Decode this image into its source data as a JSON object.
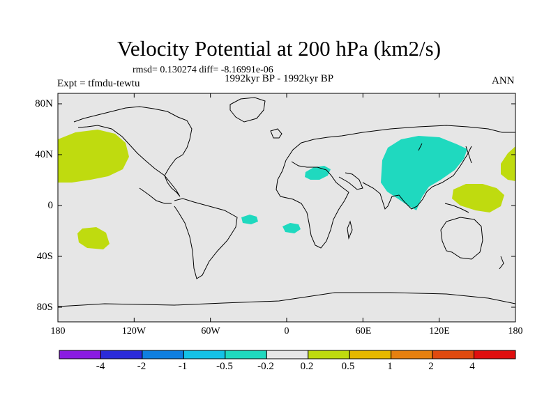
{
  "title": "Velocity Potential at 200 hPa (km2/s)",
  "stats": "rmsd= 0.130274 diff= -8.16991e-06",
  "experiment": "Expt = tfmdu-tewtu",
  "period": "1992kyr BP - 1992kyr BP",
  "season": "ANN",
  "colors": {
    "ocean": "#e6e6e6",
    "negative_region": "#1fd9bf",
    "positive_region": "#bfdb0f",
    "coast": "#000000"
  },
  "map": {
    "lon_ticks": [
      "180",
      "120W",
      "60W",
      "0",
      "60E",
      "120E",
      "180"
    ],
    "lat_ticks": [
      "80N",
      "40N",
      "0",
      "40S",
      "80S"
    ]
  },
  "colorbar": {
    "labels": [
      "-4",
      "-2",
      "-1",
      "-0.5",
      "-0.2",
      "0.2",
      "0.5",
      "1",
      "2",
      "4"
    ],
    "colors": [
      "#8a1be2",
      "#2b2bd9",
      "#0f7fe0",
      "#14c2e6",
      "#1fd9bf",
      "#e6e6e6",
      "#bfdb0f",
      "#e6b800",
      "#e6800f",
      "#e04a0f",
      "#e00f0f"
    ]
  },
  "regions": [
    {
      "name": "north-pacific-positive",
      "sign": "positive"
    },
    {
      "name": "south-pacific-positive",
      "sign": "positive"
    },
    {
      "name": "asia-negative",
      "sign": "negative"
    },
    {
      "name": "mediterranean-negative",
      "sign": "negative"
    },
    {
      "name": "atlantic-negative-west",
      "sign": "negative"
    },
    {
      "name": "atlantic-negative-east",
      "sign": "negative"
    },
    {
      "name": "west-pacific-positive",
      "sign": "positive"
    },
    {
      "name": "dateline-positive",
      "sign": "positive"
    }
  ]
}
